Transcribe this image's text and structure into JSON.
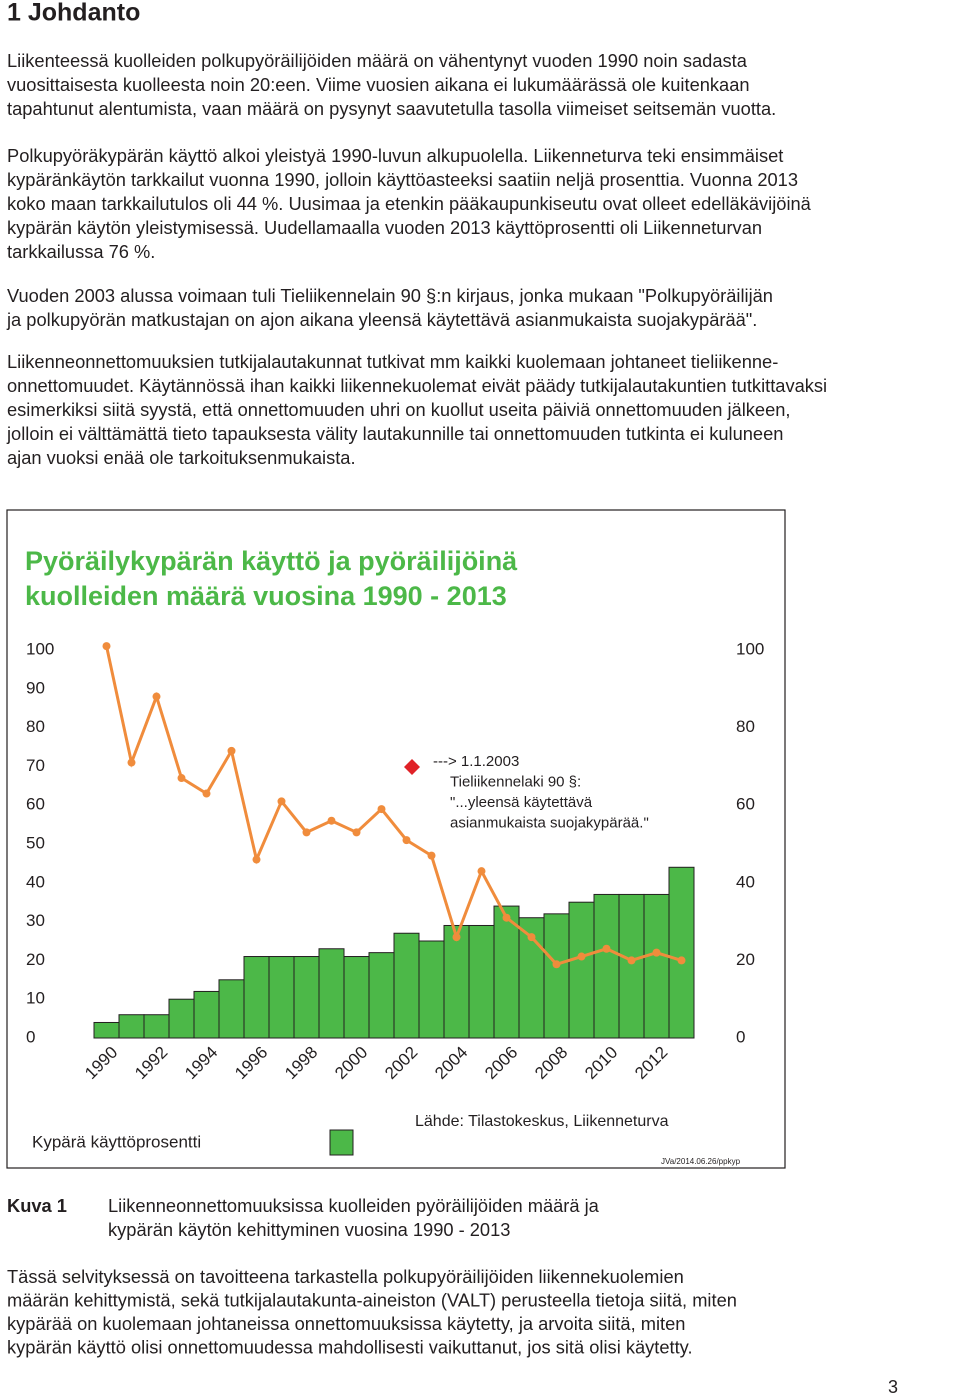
{
  "heading": "1 Johdanto",
  "paragraphs": [
    [
      "Liikenteessä kuolleiden polkupyöräilijöiden määrä on vähentynyt vuoden 1990 noin sadasta",
      "vuosittaisesta kuolleesta noin 20:een. Viime vuosien aikana ei lukumäärässä ole kuitenkaan",
      "tapahtunut alentumista, vaan määrä on pysynyt saavutetulla tasolla viimeiset seitsemän vuotta."
    ],
    [
      "Polkupyöräkypärän käyttö alkoi yleistyä 1990-luvun alkupuolella. Liikenneturva teki ensimmäiset",
      "kypäränkäytön tarkkailut vuonna 1990, jolloin käyttöasteeksi saatiin neljä prosenttia. Vuonna 2013",
      "koko maan tarkkailutulos oli 44 %. Uusimaa ja etenkin pääkaupunkiseutu ovat olleet edelläkävijöinä",
      "kypärän käytön yleistymisessä. Uudellamaalla vuoden 2013 käyttöprosentti oli Liikenneturvan",
      "tarkkailussa 76 %."
    ],
    [
      "Vuoden 2003 alussa voimaan tuli Tieliikennelain 90 §:n kirjaus, jonka mukaan \"Polkupyöräilijän",
      "ja polkupyörän matkustajan on ajon aikana yleensä käytettävä asianmukaista suojakypärää\"."
    ],
    [
      "Liikenneonnettomuuksien tutkijalautakunnat tutkivat mm kaikki kuolemaan johtaneet tieliikenne-",
      "onnettomuudet. Käytännössä ihan kaikki liikennekuolemat eivät päädy tutkijalautakuntien tutkittavaksi",
      "esimerkiksi siitä syystä, että onnettomuuden uhri on kuollut useita päiviä onnettomuuden jälkeen,",
      "jolloin ei välttämättä tieto tapauksesta välity lautakunnille tai onnettomuuden tutkinta ei kuluneen",
      "ajan vuoksi enää ole tarkoituksenmukaista."
    ]
  ],
  "chart_data": {
    "type": "bar",
    "title": [
      "Pyöräilykypärän käyttö ja pyöräilijöinä",
      "kuolleiden määrä vuosina 1990 - 2013"
    ],
    "categories": [
      "1990",
      null,
      "1992",
      null,
      "1994",
      null,
      "1996",
      null,
      "1998",
      null,
      "2000",
      null,
      "2002",
      null,
      "2004",
      null,
      "2006",
      null,
      "2008",
      null,
      "2010",
      null,
      "2012",
      null
    ],
    "series": [
      {
        "name": "Kypärä käyttöprosentti",
        "type": "bar",
        "color": "#4cb848",
        "values": [
          4,
          6,
          6,
          10,
          12,
          15,
          21,
          21,
          21,
          23,
          21,
          22,
          27,
          25,
          29,
          29,
          34,
          31,
          32,
          35,
          37,
          37,
          37,
          44
        ]
      },
      {
        "type": "line",
        "axis": "y2",
        "color": "#f08c3c",
        "values": [
          101,
          71,
          88,
          67,
          63,
          74,
          46,
          61,
          53,
          56,
          53,
          59,
          51,
          47,
          26,
          43,
          31,
          26,
          19,
          21,
          23,
          20,
          22,
          20
        ]
      }
    ],
    "ylim": [
      0,
      100
    ],
    "yticks": [
      0,
      10,
      20,
      30,
      40,
      50,
      60,
      70,
      80,
      90,
      100
    ],
    "y2lim": [
      0,
      100
    ],
    "y2ticks": [
      0,
      20,
      40,
      60,
      80,
      100
    ],
    "annotation": [
      "---> 1.1.2003",
      "Tieliikennelaki 90 §:",
      "\"...yleensä käytettävä",
      "asianmukaista suojakypärää.\""
    ],
    "source": "Lähde: Tilastokeskus, Liikenneturva",
    "stamp": "JVa/2014.06.26/ppkyp"
  },
  "caption": {
    "label": "Kuva 1",
    "lines": [
      "Liikenneonnettomuuksissa kuolleiden pyöräilijöiden määrä ja",
      "kypärän käytön kehittyminen vuosina 1990 - 2013"
    ]
  },
  "final_paragraph": [
    "Tässä selvityksessä on tavoitteena tarkastella polkupyöräilijöiden liikennekuolemien",
    "määrän kehittymistä, sekä tutkijalautakunta-aineiston (VALT) perusteella tietoja siitä, miten",
    "kypärää on kuolemaan johtaneissa onnettomuuksissa käytetty, ja arvoita siitä, miten",
    "kypärän käyttö olisi onnettomuudessa mahdollisesti vaikuttanut, jos sitä olisi käytetty."
  ],
  "page_number": "3"
}
